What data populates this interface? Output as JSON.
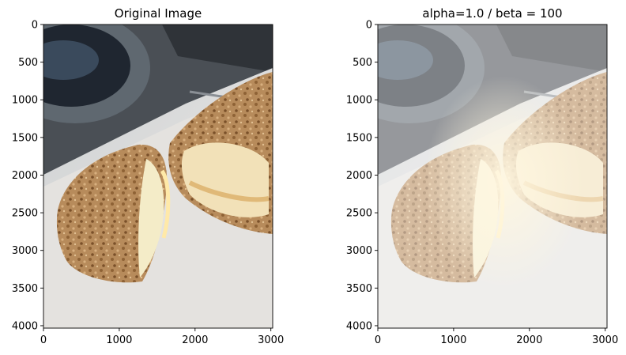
{
  "chart_data": [
    {
      "type": "image",
      "title": "Original Image",
      "image_width": 3024,
      "image_height": 4032,
      "xlim": [
        0,
        3024
      ],
      "ylim": [
        4032,
        0
      ],
      "x_ticks": [
        0,
        1000,
        2000,
        3000
      ],
      "y_ticks": [
        0,
        500,
        1000,
        1500,
        2000,
        2500,
        3000,
        3500,
        4000
      ],
      "grid": false,
      "brightened": false
    },
    {
      "type": "image",
      "title": "alpha=1.0 / beta = 100",
      "image_width": 3024,
      "image_height": 4032,
      "xlim": [
        0,
        3024
      ],
      "ylim": [
        4032,
        0
      ],
      "x_ticks": [
        0,
        1000,
        2000,
        3000
      ],
      "y_ticks": [
        0,
        500,
        1000,
        1500,
        2000,
        2500,
        3000,
        3500,
        4000
      ],
      "grid": false,
      "alpha": 1.0,
      "beta": 100,
      "brightened": true
    }
  ]
}
